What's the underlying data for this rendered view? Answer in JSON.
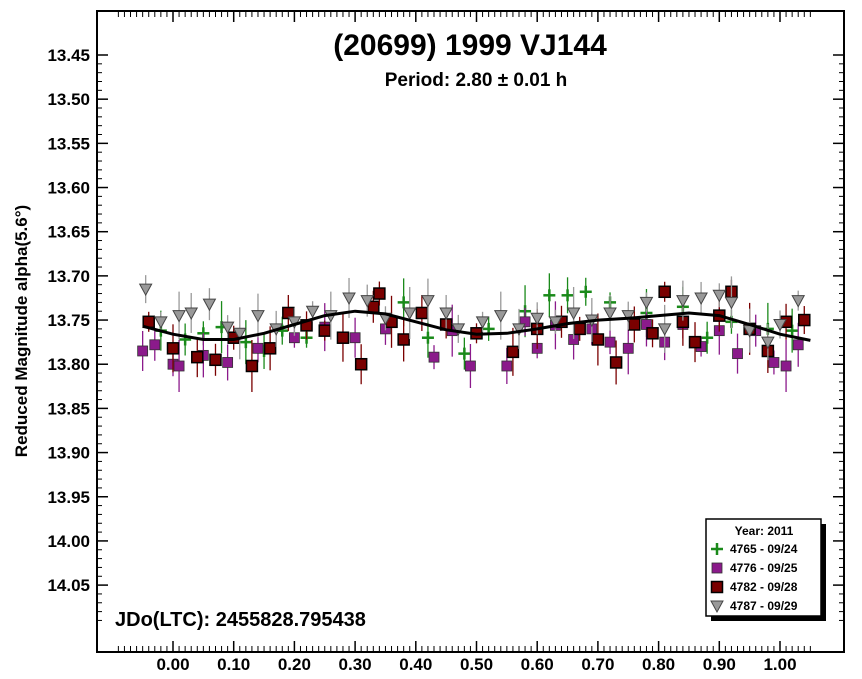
{
  "chart_data": {
    "type": "scatter",
    "title": "(20699) 1999 VJ144",
    "subtitle": "Period: 2.80 ± 0.01 h",
    "xlabel": "",
    "ylabel": "Reduced Magnitude alpha(5.6°)",
    "xlim": [
      -0.12,
      1.12
    ],
    "ylim": [
      14.1,
      13.41
    ],
    "y_inverted": true,
    "x_ticks": [
      "0.00",
      "0.10",
      "0.20",
      "0.30",
      "0.40",
      "0.50",
      "0.60",
      "0.70",
      "0.80",
      "0.90",
      "1.00"
    ],
    "x_tick_values": [
      0,
      0.1,
      0.2,
      0.3,
      0.4,
      0.5,
      0.6,
      0.7,
      0.8,
      0.9,
      1.0
    ],
    "y_ticks": [
      "13.45",
      "13.50",
      "13.55",
      "13.60",
      "13.65",
      "13.70",
      "13.75",
      "13.80",
      "13.85",
      "13.90",
      "13.95",
      "14.00",
      "14.05"
    ],
    "y_tick_values": [
      13.45,
      13.5,
      13.55,
      13.6,
      13.65,
      13.7,
      13.75,
      13.8,
      13.85,
      13.9,
      13.95,
      14.0,
      14.05
    ],
    "annotation": "JDo(LTC): 2455828.795438",
    "legend": {
      "title": "Year: 2011",
      "position": "bottom-right",
      "entries": [
        {
          "label": "4765 - 09/24",
          "marker": "plus",
          "color": "#1a8a1a"
        },
        {
          "label": "4776 - 09/25",
          "marker": "square",
          "color": "#8b1a8b"
        },
        {
          "label": "4782 - 09/28",
          "marker": "square-dark",
          "color": "#7a0000"
        },
        {
          "label": "4787 - 09/29",
          "marker": "triangle",
          "color": "#999999"
        }
      ]
    },
    "fit_curve": {
      "x": [
        -0.05,
        0.0,
        0.05,
        0.1,
        0.15,
        0.2,
        0.25,
        0.3,
        0.35,
        0.4,
        0.45,
        0.5,
        0.55,
        0.6,
        0.65,
        0.7,
        0.75,
        0.8,
        0.85,
        0.9,
        0.95,
        1.0,
        1.05
      ],
      "y": [
        13.757,
        13.766,
        13.772,
        13.772,
        13.765,
        13.755,
        13.745,
        13.74,
        13.743,
        13.752,
        13.761,
        13.766,
        13.765,
        13.76,
        13.754,
        13.75,
        13.748,
        13.745,
        13.742,
        13.745,
        13.755,
        13.766,
        13.773
      ]
    },
    "series": [
      {
        "name": "4765 - 09/24",
        "marker": "plus",
        "color": "#1a8a1a",
        "x": [
          -0.02,
          0.02,
          0.05,
          0.08,
          0.12,
          0.15,
          0.18,
          0.22,
          0.38,
          0.42,
          0.48,
          0.52,
          0.58,
          0.62,
          0.65,
          0.68,
          0.72,
          0.78,
          0.84,
          0.88,
          0.92,
          0.98,
          1.02
        ],
        "y": [
          13.762,
          13.772,
          13.765,
          13.758,
          13.775,
          13.785,
          13.762,
          13.77,
          13.73,
          13.77,
          13.788,
          13.76,
          13.74,
          13.722,
          13.722,
          13.718,
          13.73,
          13.742,
          13.735,
          13.77,
          13.752,
          13.76,
          13.762
        ]
      },
      {
        "name": "4776 - 09/25",
        "marker": "square",
        "color": "#8b1a8b",
        "x": [
          -0.05,
          -0.03,
          0.0,
          0.01,
          0.05,
          0.09,
          0.14,
          0.2,
          0.25,
          0.3,
          0.35,
          0.43,
          0.46,
          0.49,
          0.55,
          0.58,
          0.6,
          0.63,
          0.66,
          0.69,
          0.72,
          0.75,
          0.78,
          0.81,
          0.84,
          0.87,
          0.9,
          0.93,
          0.96,
          0.99,
          1.01,
          1.03
        ],
        "y": [
          13.785,
          13.778,
          13.8,
          13.802,
          13.79,
          13.798,
          13.782,
          13.77,
          13.758,
          13.77,
          13.76,
          13.792,
          13.762,
          13.802,
          13.802,
          13.752,
          13.782,
          13.756,
          13.772,
          13.76,
          13.775,
          13.782,
          13.755,
          13.775,
          13.755,
          13.78,
          13.762,
          13.788,
          13.762,
          13.798,
          13.802,
          13.778
        ]
      },
      {
        "name": "4782 - 09/28",
        "marker": "square-dark",
        "color": "#7a0000",
        "x": [
          -0.04,
          0.0,
          0.04,
          0.07,
          0.1,
          0.13,
          0.16,
          0.19,
          0.22,
          0.25,
          0.28,
          0.31,
          0.33,
          0.34,
          0.36,
          0.38,
          0.41,
          0.45,
          0.5,
          0.56,
          0.6,
          0.64,
          0.67,
          0.7,
          0.73,
          0.76,
          0.79,
          0.81,
          0.84,
          0.86,
          0.9,
          0.92,
          0.95,
          0.98,
          1.01,
          1.04
        ],
        "y": [
          13.752,
          13.782,
          13.792,
          13.795,
          13.77,
          13.802,
          13.782,
          13.742,
          13.756,
          13.762,
          13.77,
          13.8,
          13.735,
          13.72,
          13.752,
          13.772,
          13.742,
          13.755,
          13.765,
          13.786,
          13.76,
          13.752,
          13.76,
          13.772,
          13.798,
          13.755,
          13.765,
          13.718,
          13.752,
          13.775,
          13.745,
          13.718,
          13.76,
          13.785,
          13.752,
          13.75
        ]
      },
      {
        "name": "4787 - 09/29",
        "marker": "triangle",
        "color": "#999999",
        "x": [
          -0.045,
          -0.02,
          0.01,
          0.03,
          0.06,
          0.09,
          0.11,
          0.14,
          0.17,
          0.2,
          0.23,
          0.26,
          0.29,
          0.32,
          0.35,
          0.39,
          0.42,
          0.45,
          0.47,
          0.51,
          0.54,
          0.57,
          0.6,
          0.63,
          0.66,
          0.69,
          0.72,
          0.75,
          0.78,
          0.81,
          0.84,
          0.87,
          0.9,
          0.92,
          0.95,
          0.98,
          1.0,
          1.03
        ],
        "y": [
          13.715,
          13.752,
          13.745,
          13.742,
          13.732,
          13.758,
          13.765,
          13.745,
          13.76,
          13.752,
          13.74,
          13.745,
          13.725,
          13.728,
          13.748,
          13.742,
          13.728,
          13.742,
          13.76,
          13.752,
          13.745,
          13.76,
          13.748,
          13.752,
          13.742,
          13.75,
          13.742,
          13.745,
          13.73,
          13.76,
          13.728,
          13.725,
          13.722,
          13.73,
          13.762,
          13.775,
          13.755,
          13.728
        ]
      }
    ]
  }
}
